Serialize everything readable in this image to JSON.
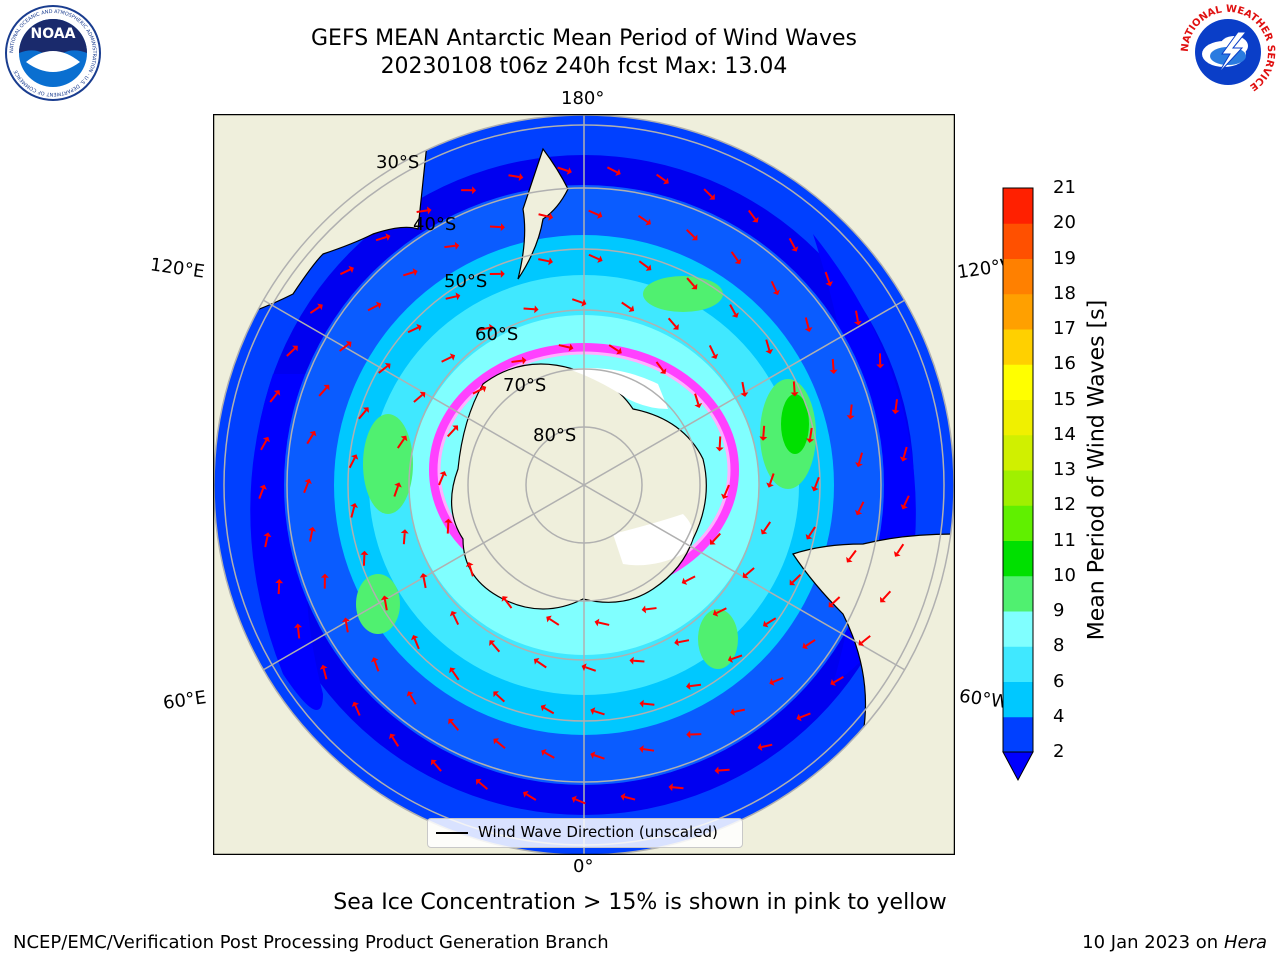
{
  "header": {
    "title": "GEFS MEAN Antarctic Mean Period of Wind Waves",
    "subtitle": "20230108 t06z 240h fcst   Max: 13.04"
  },
  "logos": {
    "left": "noara-logo",
    "right": "nws-logo",
    "left_text": "NOAA",
    "left_ring_text": "NATIONAL OCEANIC AND ATMOSPHERIC ADMINISTRATION · U.S. DEPARTMENT OF COMMERCE",
    "right_ring_text": "NATIONAL WEATHER SERVICE"
  },
  "map": {
    "longitude_labels": {
      "top": "180°",
      "bottom": "0°",
      "left_upper": "120°E",
      "left_lower": "60°E",
      "right_upper": "120°W",
      "right_lower": "60°W"
    },
    "latitude_labels": [
      "30°S",
      "40°S",
      "50°S",
      "60°S",
      "70°S",
      "80°S"
    ],
    "legend_label": "Wind Wave Direction (unscaled)"
  },
  "colorbar": {
    "label": "Mean Period of Wind Waves [s]",
    "ticks": [
      "2",
      "4",
      "6",
      "8",
      "9",
      "10",
      "11",
      "12",
      "13",
      "14",
      "15",
      "16",
      "17",
      "18",
      "19",
      "20",
      "21"
    ],
    "colors": [
      "#0040ff",
      "#00c8ff",
      "#40e8ff",
      "#80ffff",
      "#50f070",
      "#00e000",
      "#60f000",
      "#a0f000",
      "#d0f000",
      "#f0f000",
      "#ffff00",
      "#ffd000",
      "#ffa000",
      "#ff8000",
      "#ff5000",
      "#ff2000",
      "#ff0000"
    ],
    "underflow_color": "#0000ff"
  },
  "caption": "Sea Ice Concentration > 15% is shown in pink to yellow",
  "footer": {
    "left": "NCEP/EMC/Verification Post Processing Product Generation Branch",
    "right_date": "10 Jan 2023 on",
    "right_host": "Hera"
  }
}
